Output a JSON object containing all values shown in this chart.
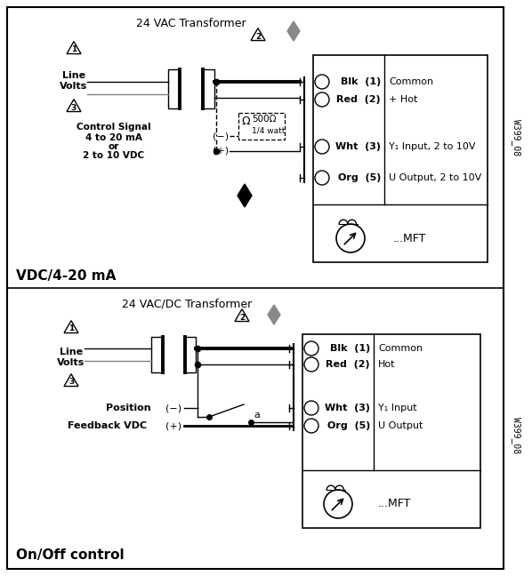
{
  "bg_color": "#ffffff",
  "top_title": "24 VAC Transformer",
  "bottom_title": "24 VAC/DC Transformer",
  "top_label": "VDC/4-20 mA",
  "bottom_label": "On/Off control",
  "watermark": "W399_08",
  "top_terminal_labels": [
    [
      "Blk",
      "(1)",
      "Common"
    ],
    [
      "Red",
      "(2)",
      "+ Hot"
    ],
    [
      "Wht",
      "(3)",
      "Y₁ Input, 2 to 10V"
    ],
    [
      "Org",
      "(5)",
      "U Output, 2 to 10V"
    ]
  ],
  "bottom_terminal_labels": [
    [
      "Blk",
      "(1)",
      "Common"
    ],
    [
      "Red",
      "(2)",
      "Hot"
    ],
    [
      "Wht",
      "(3)",
      "Y₁ Input"
    ],
    [
      "Org",
      "(5)",
      "U Output"
    ]
  ],
  "mft_label": "...MFT"
}
